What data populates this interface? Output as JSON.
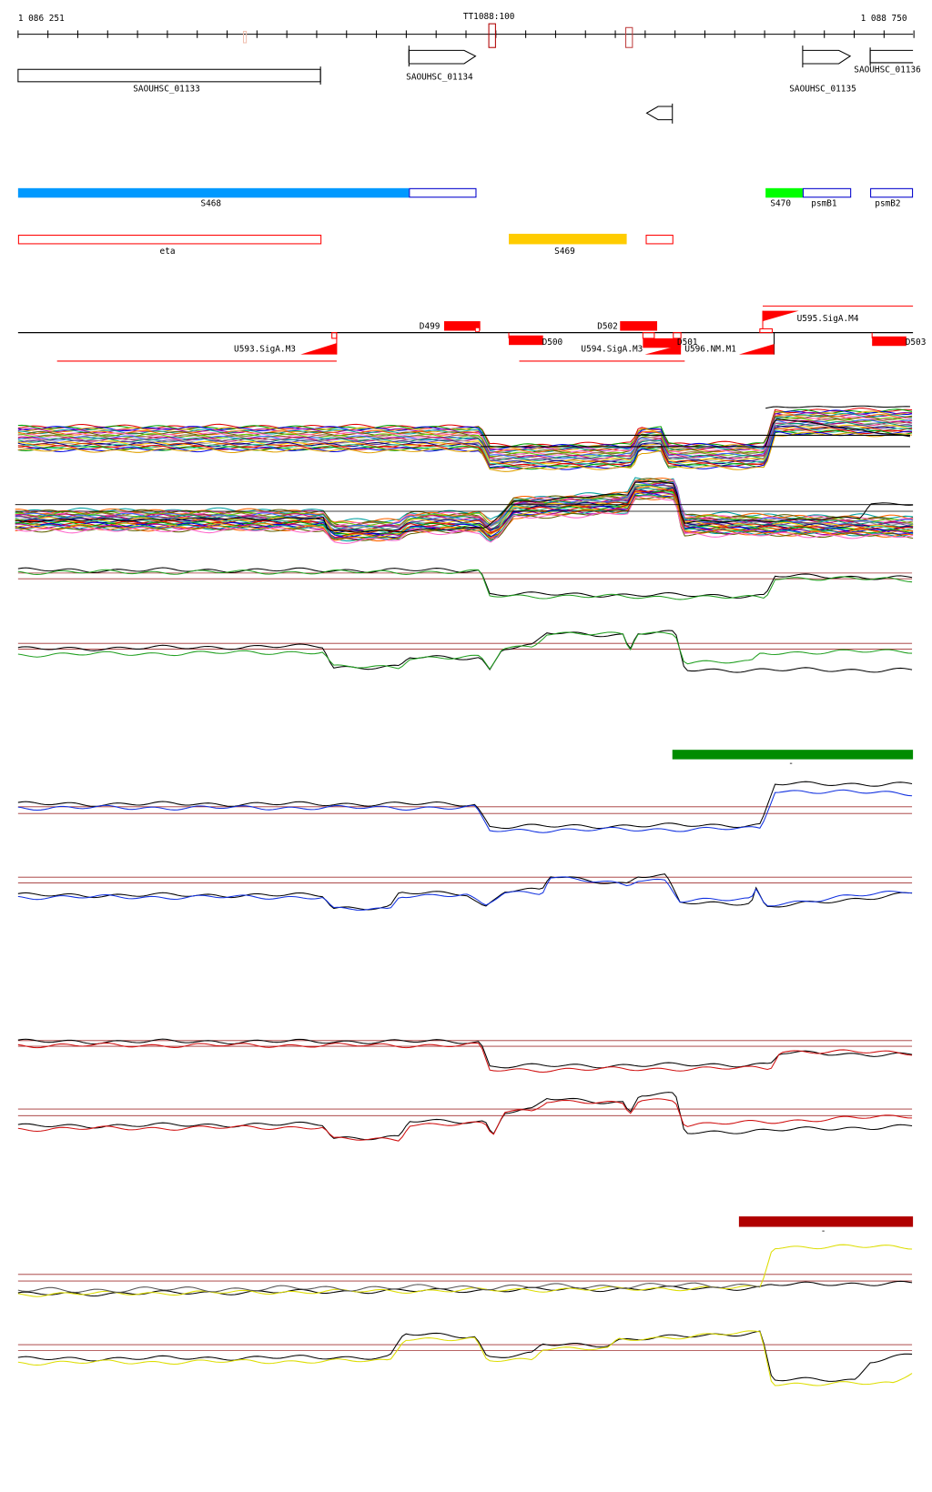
{
  "ruler": {
    "start_label": "1 086 251",
    "end_label": "1 088 750",
    "marker_label": "TT1088:100"
  },
  "genes": [
    {
      "label": "SAOUHSC_01133",
      "strand": "none"
    },
    {
      "label": "SAOUHSC_01134",
      "strand": "+"
    },
    {
      "label": "SAOUHSC_01135",
      "strand": "+"
    },
    {
      "label": "SAOUHSC_01136",
      "strand": "none"
    },
    {
      "label": "",
      "strand": "-"
    }
  ],
  "features_plus": [
    {
      "label": "S468",
      "color": "#0099ff"
    },
    {
      "label": "S470",
      "color": "#00ff00"
    },
    {
      "label": "psmB1",
      "color": "#0000cc"
    },
    {
      "label": "psmB2",
      "color": "#0000cc"
    }
  ],
  "features_minus": [
    {
      "label": "eta",
      "color": "#ff0000"
    },
    {
      "label": "S469",
      "color": "#ffcc00"
    }
  ],
  "promoters": [
    {
      "label": "D499"
    },
    {
      "label": "D502"
    },
    {
      "label": "D500"
    },
    {
      "label": "D501"
    },
    {
      "label": "D503"
    },
    {
      "label": "U593.SigA.M3"
    },
    {
      "label": "U594.SigA.M3"
    },
    {
      "label": "U596.NM.M1"
    },
    {
      "label": "U595.SigA.M4"
    }
  ],
  "condition_bars": [
    {
      "label": "-",
      "color": "#008c00"
    },
    {
      "label": "-",
      "color": "#b00000"
    }
  ],
  "track_colors": {
    "green": "#22a022",
    "blue": "#1030e0",
    "red": "#d01010",
    "yellow": "#dddd00",
    "reference": "#a03030"
  }
}
